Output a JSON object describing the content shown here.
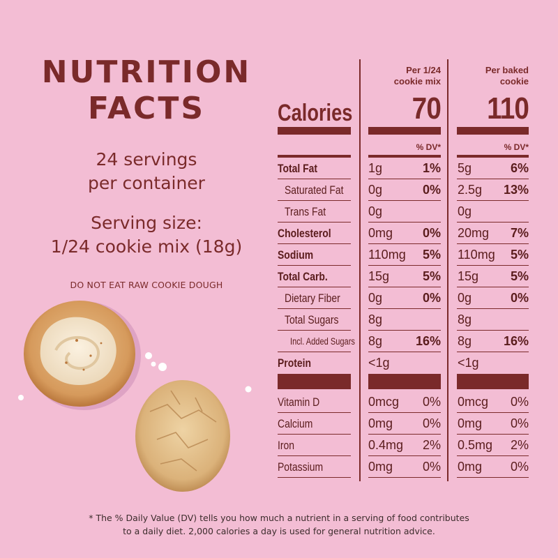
{
  "title_line1": "NUTRITION",
  "title_line2": "FACTS",
  "servings_line1": "24 servings",
  "servings_line2": "per container",
  "serving_size_line1": "Serving size:",
  "serving_size_line2": "1/24 cookie mix (18g)",
  "warning": "DO NOT EAT RAW COOKIE DOUGH",
  "calories_label": "Calories",
  "columns": [
    {
      "header_line1": "Per 1/24",
      "header_line2": "cookie mix",
      "calories": "70",
      "dv_header": "% DV*"
    },
    {
      "header_line1": "Per baked",
      "header_line2": "cookie",
      "calories": "110",
      "dv_header": "% DV*"
    }
  ],
  "nutrients": [
    {
      "name": "Total Fat",
      "style": "bold",
      "c1_amt": "1g",
      "c1_pct": "1%",
      "c2_amt": "5g",
      "c2_pct": "6%",
      "pct_bold": true
    },
    {
      "name": "Saturated Fat",
      "style": "sub",
      "c1_amt": "0g",
      "c1_pct": "0%",
      "c2_amt": "2.5g",
      "c2_pct": "13%",
      "pct_bold": true
    },
    {
      "name": "Trans Fat",
      "style": "sub",
      "c1_amt": "0g",
      "c1_pct": "",
      "c2_amt": "0g",
      "c2_pct": "",
      "pct_bold": true
    },
    {
      "name": "Cholesterol",
      "style": "bold",
      "c1_amt": "0mg",
      "c1_pct": "0%",
      "c2_amt": "20mg",
      "c2_pct": "7%",
      "pct_bold": true
    },
    {
      "name": "Sodium",
      "style": "bold",
      "c1_amt": "110mg",
      "c1_pct": "5%",
      "c2_amt": "110mg",
      "c2_pct": "5%",
      "pct_bold": true
    },
    {
      "name": "Total Carb.",
      "style": "bold",
      "c1_amt": "15g",
      "c1_pct": "5%",
      "c2_amt": "15g",
      "c2_pct": "5%",
      "pct_bold": true
    },
    {
      "name": "Dietary Fiber",
      "style": "sub",
      "c1_amt": "0g",
      "c1_pct": "0%",
      "c2_amt": "0g",
      "c2_pct": "0%",
      "pct_bold": true
    },
    {
      "name": "Total Sugars",
      "style": "sub",
      "c1_amt": "8g",
      "c1_pct": "",
      "c2_amt": "8g",
      "c2_pct": "",
      "pct_bold": true
    },
    {
      "name": "Incl. Added Sugars",
      "style": "tiny",
      "c1_amt": "8g",
      "c1_pct": "16%",
      "c2_amt": "8g",
      "c2_pct": "16%",
      "pct_bold": true
    },
    {
      "name": "Protein",
      "style": "bold",
      "c1_amt": "<1g",
      "c1_pct": "",
      "c2_amt": "<1g",
      "c2_pct": "",
      "pct_bold": true
    }
  ],
  "vitamins": [
    {
      "name": "Vitamin D",
      "c1_amt": "0mcg",
      "c1_pct": "0%",
      "c2_amt": "0mcg",
      "c2_pct": "0%"
    },
    {
      "name": "Calcium",
      "c1_amt": "0mg",
      "c1_pct": "0%",
      "c2_amt": "0mg",
      "c2_pct": "0%"
    },
    {
      "name": "Iron",
      "c1_amt": "0.4mg",
      "c1_pct": "2%",
      "c2_amt": "0.5mg",
      "c2_pct": "2%"
    },
    {
      "name": "Potassium",
      "c1_amt": "0mg",
      "c1_pct": "0%",
      "c2_amt": "0mg",
      "c2_pct": "0%"
    }
  ],
  "footnote_line1": "* The % Daily Value (DV) tells you how much a nutrient in a serving of food contributes",
  "footnote_line2": "to a daily diet. 2,000 calories a day is used for general nutrition advice.",
  "colors": {
    "background": "#f3bdd4",
    "brand": "#7a2a2a"
  }
}
